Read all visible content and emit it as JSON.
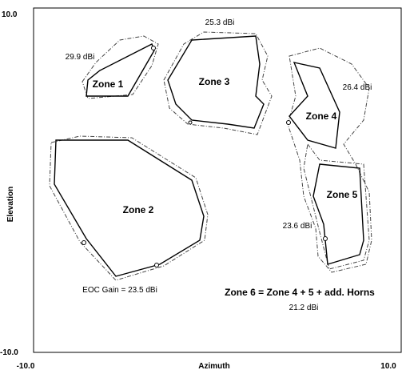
{
  "axes": {
    "x_label": "Azimuth",
    "y_label": "Elevation",
    "x_min": "-10.0",
    "x_max": "10.0",
    "y_min": "-10.0",
    "y_max": "10.0"
  },
  "zones": [
    {
      "label": "Zone 1",
      "gain": "29.9 dBi"
    },
    {
      "label": "Zone 3",
      "gain": "25.3 dBi"
    },
    {
      "label": "Zone 4",
      "gain": "26.4 dBi"
    },
    {
      "label": "Zone 2",
      "gain": "EOC Gain = 23.5 dBi"
    },
    {
      "label": "Zone 5",
      "gain": "23.6 dBi"
    }
  ],
  "zone6": {
    "label": "Zone 6 = Zone 4 + 5 + add. Horns",
    "gain": "21.2 dBi"
  }
}
